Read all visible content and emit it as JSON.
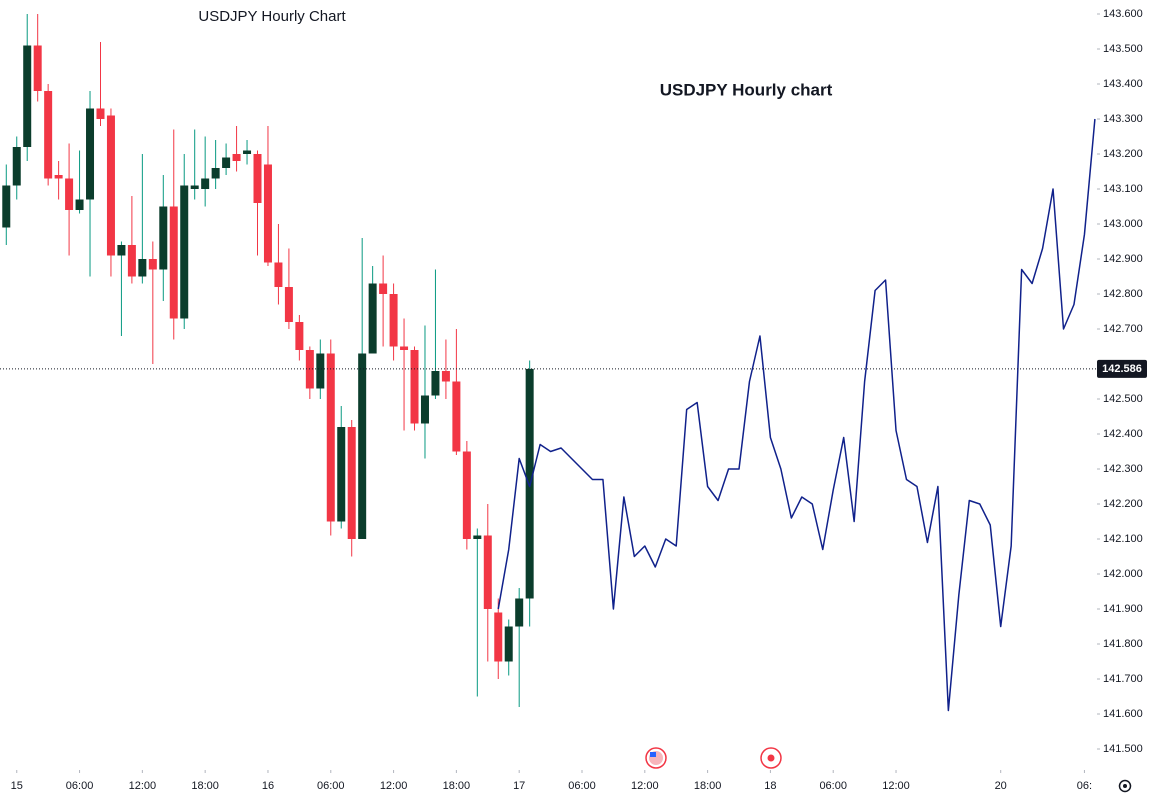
{
  "chart_data": {
    "type": "candlestick",
    "title": "USDJPY Hourly Chart",
    "annotation": "USDJPY Hourly chart",
    "up_color": "#0b3d2c",
    "up_wick_color": "#089981",
    "down_color": "#f23645",
    "xlim": [
      -1.6,
      103.2
    ],
    "ylim": [
      141.44,
      143.64
    ],
    "xticks": [
      {
        "value": 0,
        "label": "15"
      },
      {
        "value": 6,
        "label": "06:00"
      },
      {
        "value": 12,
        "label": "12:00"
      },
      {
        "value": 18,
        "label": "18:00"
      },
      {
        "value": 24,
        "label": "16"
      },
      {
        "value": 30,
        "label": "06:00"
      },
      {
        "value": 36,
        "label": "12:00"
      },
      {
        "value": 42,
        "label": "18:00"
      },
      {
        "value": 48,
        "label": "17"
      },
      {
        "value": 54,
        "label": "06:00"
      },
      {
        "value": 60,
        "label": "12:00"
      },
      {
        "value": 66,
        "label": "18:00"
      },
      {
        "value": 72,
        "label": "18"
      },
      {
        "value": 78,
        "label": "06:00"
      },
      {
        "value": 84,
        "label": "12:00"
      },
      {
        "value": 94,
        "label": "20"
      },
      {
        "value": 102,
        "label": "06:"
      }
    ],
    "yticks": [
      {
        "value": 143.6,
        "label": "143.600"
      },
      {
        "value": 143.5,
        "label": "143.500"
      },
      {
        "value": 143.4,
        "label": "143.400"
      },
      {
        "value": 143.3,
        "label": "143.300"
      },
      {
        "value": 143.2,
        "label": "143.200"
      },
      {
        "value": 143.1,
        "label": "143.100"
      },
      {
        "value": 143.0,
        "label": "143.000"
      },
      {
        "value": 142.9,
        "label": "142.900"
      },
      {
        "value": 142.8,
        "label": "142.800"
      },
      {
        "value": 142.7,
        "label": "142.700"
      },
      {
        "value": 142.5,
        "label": "142.500"
      },
      {
        "value": 142.4,
        "label": "142.400"
      },
      {
        "value": 142.3,
        "label": "142.300"
      },
      {
        "value": 142.2,
        "label": "142.200"
      },
      {
        "value": 142.1,
        "label": "142.100"
      },
      {
        "value": 142.0,
        "label": "142.000"
      },
      {
        "value": 141.9,
        "label": "141.900"
      },
      {
        "value": 141.8,
        "label": "141.800"
      },
      {
        "value": 141.7,
        "label": "141.700"
      },
      {
        "value": 141.6,
        "label": "141.600"
      },
      {
        "value": 141.5,
        "label": "141.500"
      }
    ],
    "last_price": 142.586,
    "candles": {
      "x": [
        -1,
        0,
        1,
        2,
        3,
        4,
        5,
        6,
        7,
        8,
        9,
        10,
        11,
        12,
        13,
        14,
        15,
        16,
        17,
        18,
        19,
        20,
        21,
        22,
        23,
        24,
        25,
        26,
        27,
        28,
        29,
        30,
        31,
        32,
        33,
        34,
        35,
        36,
        37,
        38,
        39,
        40,
        41,
        42,
        43,
        44,
        45,
        46,
        47,
        48,
        49
      ],
      "open": [
        142.99,
        143.11,
        143.22,
        143.51,
        143.38,
        143.14,
        143.13,
        143.04,
        143.07,
        143.33,
        143.31,
        142.91,
        142.94,
        142.85,
        142.9,
        142.87,
        143.05,
        142.73,
        143.1,
        143.1,
        143.13,
        143.16,
        143.2,
        143.2,
        143.2,
        143.17,
        142.89,
        142.82,
        142.72,
        142.64,
        142.53,
        142.63,
        142.15,
        142.42,
        142.1,
        142.63,
        142.83,
        142.8,
        142.65,
        142.64,
        142.43,
        142.51,
        142.58,
        142.55,
        142.35,
        142.1,
        142.11,
        141.89,
        141.75,
        141.85,
        141.93
      ],
      "high": [
        143.17,
        143.25,
        143.6,
        143.6,
        143.4,
        143.18,
        143.23,
        143.21,
        143.38,
        143.52,
        143.33,
        142.95,
        143.08,
        143.2,
        142.95,
        143.14,
        143.27,
        143.2,
        143.27,
        143.25,
        143.24,
        143.23,
        143.28,
        143.24,
        143.21,
        143.28,
        143.0,
        142.93,
        142.74,
        142.65,
        142.67,
        142.67,
        142.48,
        142.44,
        142.96,
        142.88,
        142.91,
        142.83,
        142.73,
        142.65,
        142.71,
        142.87,
        142.67,
        142.7,
        142.38,
        142.13,
        142.2,
        141.93,
        141.87,
        141.96,
        142.61
      ],
      "low": [
        142.94,
        143.07,
        143.18,
        143.35,
        143.11,
        143.07,
        142.91,
        143.03,
        142.85,
        143.28,
        142.85,
        142.68,
        142.83,
        142.83,
        142.6,
        142.78,
        142.67,
        142.7,
        143.07,
        143.05,
        143.1,
        143.14,
        143.15,
        143.17,
        142.91,
        142.88,
        142.77,
        142.7,
        142.61,
        142.5,
        142.5,
        142.11,
        142.13,
        142.05,
        142.1,
        142.63,
        142.65,
        142.61,
        142.41,
        142.41,
        142.33,
        142.5,
        142.5,
        142.34,
        142.07,
        141.65,
        141.75,
        141.7,
        141.71,
        141.62,
        141.85
      ],
      "close": [
        143.11,
        143.22,
        143.51,
        143.38,
        143.13,
        143.13,
        143.04,
        143.07,
        143.33,
        143.3,
        142.91,
        142.94,
        142.85,
        142.9,
        142.87,
        143.05,
        142.73,
        143.11,
        143.11,
        143.13,
        143.16,
        143.19,
        143.18,
        143.21,
        143.06,
        142.89,
        142.82,
        142.72,
        142.64,
        142.53,
        142.63,
        142.15,
        142.42,
        142.1,
        142.63,
        142.83,
        142.8,
        142.65,
        142.64,
        142.43,
        142.51,
        142.58,
        142.55,
        142.35,
        142.1,
        142.11,
        141.9,
        141.75,
        141.85,
        141.93,
        142.586
      ]
    },
    "line": {
      "color": "#10218b",
      "x": [
        46,
        47,
        48,
        49,
        50,
        51,
        52,
        53,
        54,
        55,
        56,
        57,
        58,
        59,
        60,
        61,
        62,
        63,
        64,
        65,
        66,
        67,
        68,
        69,
        70,
        71,
        72,
        73,
        74,
        75,
        76,
        77,
        78,
        79,
        80,
        81,
        82,
        83,
        84,
        85,
        86,
        87,
        88,
        89,
        90,
        91,
        92,
        93,
        94,
        95,
        96,
        97,
        98,
        99,
        100,
        101,
        102,
        103
      ],
      "values": [
        141.9,
        142.07,
        142.33,
        142.25,
        142.37,
        142.35,
        142.36,
        142.33,
        142.3,
        142.27,
        142.27,
        141.9,
        142.22,
        142.05,
        142.08,
        142.02,
        142.1,
        142.08,
        142.47,
        142.49,
        142.25,
        142.21,
        142.3,
        142.3,
        142.55,
        142.68,
        142.39,
        142.3,
        142.16,
        142.22,
        142.2,
        142.07,
        142.24,
        142.39,
        142.15,
        142.55,
        142.81,
        142.84,
        142.41,
        142.27,
        142.25,
        142.09,
        142.25,
        141.61,
        141.94,
        142.21,
        142.2,
        142.14,
        141.85,
        142.08,
        142.87,
        142.83,
        142.93,
        143.1,
        142.7,
        142.77,
        142.97,
        143.3
      ]
    }
  }
}
